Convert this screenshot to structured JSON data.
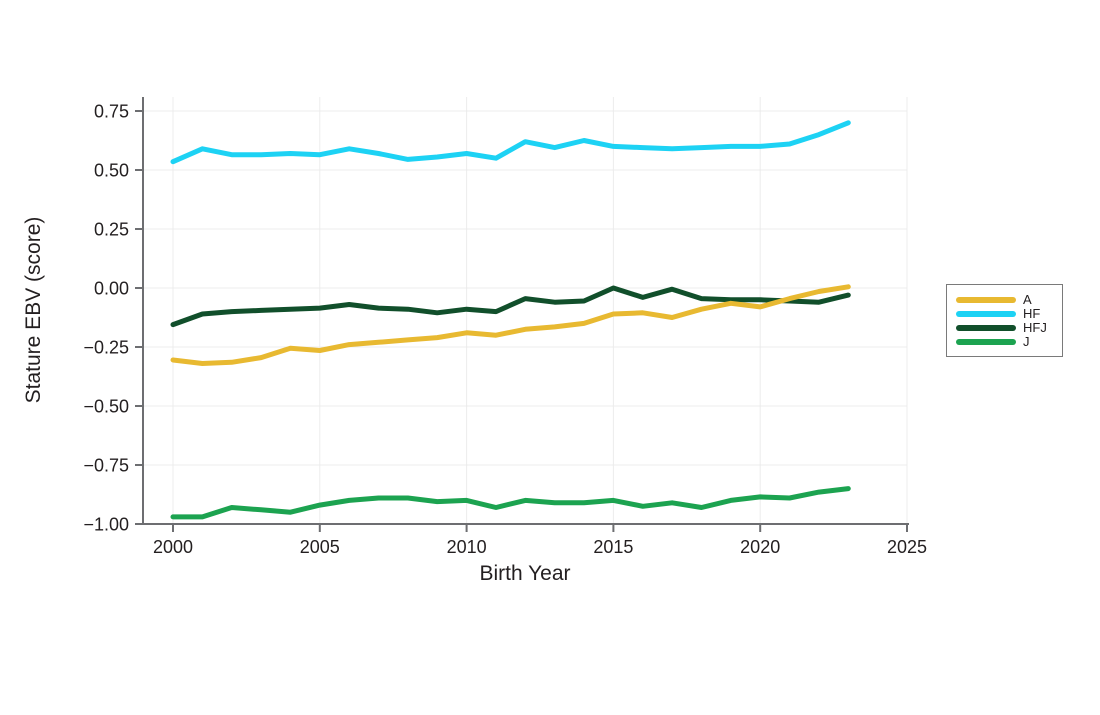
{
  "page": {
    "background": "#ffffff"
  },
  "chart_data": {
    "type": "line",
    "title": "",
    "xlabel": "Birth Year",
    "ylabel": "Stature EBV (score)",
    "x": [
      2000,
      2001,
      2002,
      2003,
      2004,
      2005,
      2006,
      2007,
      2008,
      2009,
      2010,
      2011,
      2012,
      2013,
      2014,
      2015,
      2016,
      2017,
      2018,
      2019,
      2020,
      2021,
      2022,
      2023
    ],
    "series": [
      {
        "name": "A",
        "color": "#E8B931",
        "values": [
          -0.305,
          -0.32,
          -0.315,
          -0.295,
          -0.255,
          -0.265,
          -0.24,
          -0.23,
          -0.22,
          -0.21,
          -0.19,
          -0.2,
          -0.175,
          -0.165,
          -0.15,
          -0.11,
          -0.105,
          -0.125,
          -0.09,
          -0.065,
          -0.08,
          -0.045,
          -0.015,
          0.005
        ]
      },
      {
        "name": "HF",
        "color": "#1DD2F4",
        "values": [
          0.535,
          0.59,
          0.565,
          0.565,
          0.57,
          0.565,
          0.59,
          0.57,
          0.545,
          0.555,
          0.57,
          0.55,
          0.62,
          0.595,
          0.625,
          0.6,
          0.595,
          0.59,
          0.595,
          0.6,
          0.6,
          0.61,
          0.65,
          0.7
        ]
      },
      {
        "name": "HFJ",
        "color": "#114F2B",
        "values": [
          -0.155,
          -0.11,
          -0.1,
          -0.095,
          -0.09,
          -0.085,
          -0.07,
          -0.085,
          -0.09,
          -0.105,
          -0.09,
          -0.1,
          -0.045,
          -0.06,
          -0.055,
          0.0,
          -0.04,
          -0.005,
          -0.045,
          -0.05,
          -0.05,
          -0.055,
          -0.06,
          -0.03
        ]
      },
      {
        "name": "J",
        "color": "#1CA350",
        "values": [
          -0.97,
          -0.97,
          -0.93,
          -0.94,
          -0.95,
          -0.92,
          -0.9,
          -0.89,
          -0.89,
          -0.905,
          -0.9,
          -0.93,
          -0.9,
          -0.91,
          -0.91,
          -0.9,
          -0.925,
          -0.91,
          -0.93,
          -0.9,
          -0.885,
          -0.89,
          -0.865,
          -0.85
        ]
      }
    ],
    "xlim": [
      2000,
      2025
    ],
    "ylim": [
      -1.0,
      0.81
    ],
    "xticks": {
      "values": [
        2000,
        2005,
        2010,
        2015,
        2020,
        2025
      ],
      "labels": [
        "2000",
        "2005",
        "2010",
        "2015",
        "2020",
        "2025"
      ]
    },
    "yticks": {
      "values": [
        0.75,
        0.5,
        0.25,
        0.0,
        -0.25,
        -0.5,
        -0.75,
        -1.0
      ],
      "labels": [
        "0.75",
        "0.50",
        "0.25",
        "0.00",
        "−0.25",
        "−0.50",
        "−0.75",
        "−1.00"
      ]
    },
    "grid": true,
    "legend_position": "right"
  }
}
